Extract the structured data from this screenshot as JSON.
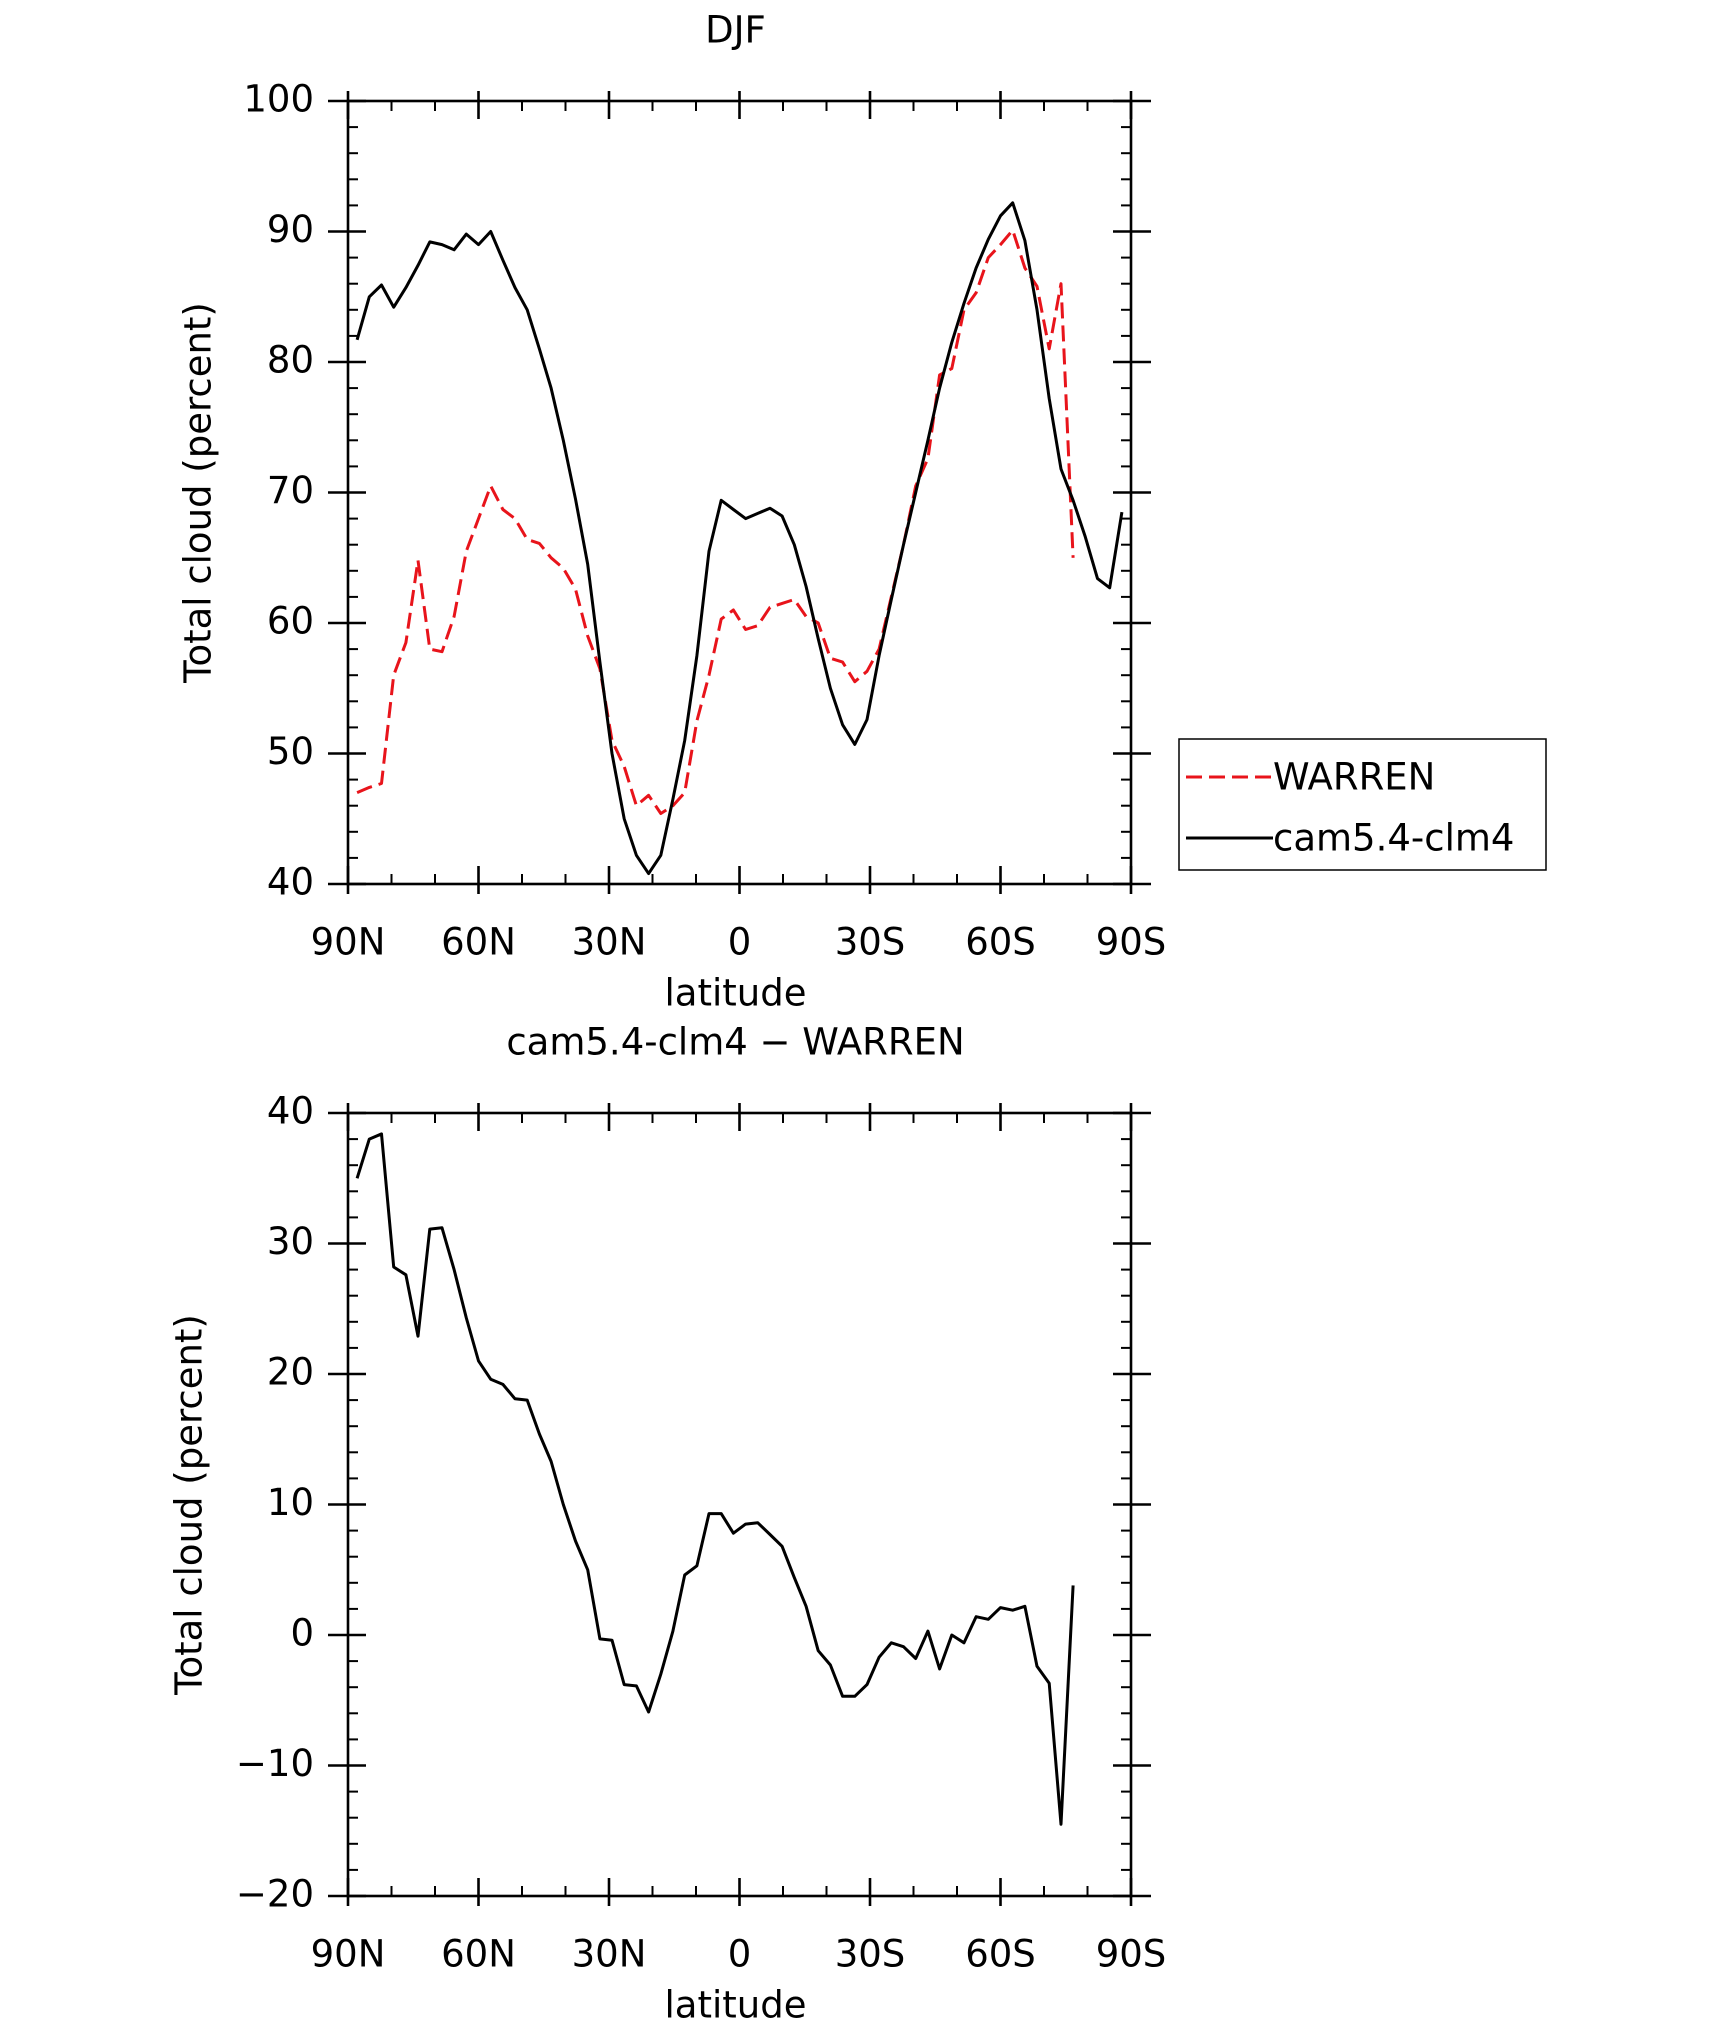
{
  "chart_data": [
    {
      "type": "line",
      "title": "DJF",
      "x_label": "latitude",
      "y_label": "Total cloud (percent)",
      "x": [
        87.9,
        85.1,
        82.3,
        79.5,
        76.7,
        73.9,
        71.2,
        68.4,
        65.6,
        62.8,
        60.0,
        57.2,
        54.4,
        51.6,
        48.8,
        46.0,
        43.3,
        40.5,
        37.7,
        34.9,
        32.1,
        29.3,
        26.5,
        23.7,
        20.9,
        18.1,
        15.3,
        12.6,
        9.8,
        7.0,
        4.2,
        1.4,
        -1.4,
        -4.2,
        -7.0,
        -9.8,
        -12.6,
        -15.3,
        -18.1,
        -20.9,
        -23.7,
        -26.5,
        -29.3,
        -32.1,
        -34.9,
        -37.7,
        -40.5,
        -43.3,
        -46.0,
        -48.8,
        -51.6,
        -54.4,
        -57.2,
        -60.0,
        -62.8,
        -65.6,
        -68.4,
        -71.2,
        -73.9,
        -76.7,
        -79.5,
        -82.3,
        -85.1,
        -87.9
      ],
      "xlim": [
        90,
        -90
      ],
      "xticks": [
        {
          "value": 90,
          "label": "90N"
        },
        {
          "value": 60,
          "label": "60N"
        },
        {
          "value": 30,
          "label": "30N"
        },
        0,
        {
          "value": -30,
          "label": "30S"
        },
        {
          "value": -60,
          "label": "60S"
        },
        {
          "value": -90,
          "label": "90S"
        }
      ],
      "ylim": [
        40,
        100
      ],
      "yticks": [
        40,
        50,
        60,
        70,
        80,
        90,
        100
      ],
      "legend": "right",
      "series": [
        {
          "name": "WARREN",
          "color": "#e8141b",
          "dashed": true,
          "values": [
            47,
            47.4,
            47.7,
            56,
            58.5,
            64.8,
            58,
            57.8,
            60.5,
            65.5,
            68,
            70.5,
            68.7,
            68,
            66.4,
            66.1,
            65,
            64.2,
            62.6,
            59,
            56.5,
            51,
            49,
            46,
            46.8,
            45.4,
            46,
            47,
            52.5,
            56,
            60.3,
            61,
            59.5,
            59.8,
            61.2,
            61.5,
            61.8,
            60.5,
            60,
            57.3,
            57,
            55.5,
            56.3,
            58,
            62,
            66,
            70.5,
            72.6,
            79,
            79.5,
            84,
            85.3,
            88,
            89,
            90.1,
            87.2,
            85.8,
            81,
            86,
            65,
            null,
            null,
            null,
            null
          ]
        },
        {
          "name": "cam5.4-clm4",
          "color": "#000000",
          "dashed": false,
          "values": [
            81.7,
            85,
            85.9,
            84.2,
            85.7,
            87.4,
            89.2,
            89,
            88.6,
            89.8,
            89,
            90,
            87.8,
            85.7,
            84,
            81,
            78,
            74,
            69.5,
            64.5,
            57,
            50,
            45,
            42.2,
            40.8,
            42.2,
            46.5,
            51,
            57.5,
            65.5,
            69.4,
            68.7,
            68,
            68.4,
            68.8,
            68.2,
            66,
            62.8,
            58.8,
            55,
            52.2,
            50.7,
            52.6,
            57.5,
            61.8,
            66,
            70,
            74,
            78,
            81.5,
            84.5,
            87.2,
            89.4,
            91.2,
            92.2,
            89.3,
            84,
            77.2,
            71.8,
            69.4,
            66.6,
            63.4,
            62.7,
            68.5
          ]
        }
      ]
    },
    {
      "type": "line",
      "title": "cam5.4-clm4 − WARREN",
      "x_label": "latitude",
      "y_label": "Total cloud (percent)",
      "x": [
        87.9,
        85.1,
        82.3,
        79.5,
        76.7,
        73.9,
        71.2,
        68.4,
        65.6,
        62.8,
        60.0,
        57.2,
        54.4,
        51.6,
        48.8,
        46.0,
        43.3,
        40.5,
        37.7,
        34.9,
        32.1,
        29.3,
        26.5,
        23.7,
        20.9,
        18.1,
        15.3,
        12.6,
        9.8,
        7.0,
        4.2,
        1.4,
        -1.4,
        -4.2,
        -7.0,
        -9.8,
        -12.6,
        -15.3,
        -18.1,
        -20.9,
        -23.7,
        -26.5,
        -29.3,
        -32.1,
        -34.9,
        -37.7,
        -40.5,
        -43.3,
        -46.0,
        -48.8,
        -51.6,
        -54.4,
        -57.2,
        -60.0,
        -62.8,
        -65.6,
        -68.4,
        -71.2,
        -73.9,
        -76.7,
        -79.5,
        -82.3,
        -85.1,
        -87.9
      ],
      "xlim": [
        90,
        -90
      ],
      "xticks": [
        {
          "value": 90,
          "label": "90N"
        },
        {
          "value": 60,
          "label": "60N"
        },
        {
          "value": 30,
          "label": "30N"
        },
        0,
        {
          "value": -30,
          "label": "30S"
        },
        {
          "value": -60,
          "label": "60S"
        },
        {
          "value": -90,
          "label": "90S"
        }
      ],
      "ylim": [
        -20,
        40
      ],
      "yticks": [
        {
          "value": -20,
          "label": "−20"
        },
        {
          "value": -10,
          "label": "−10"
        },
        0,
        10,
        20,
        30,
        40
      ],
      "series": [
        {
          "color": "#000000",
          "dashed": false,
          "values": [
            35,
            38,
            38.4,
            28.2,
            27.6,
            22.9,
            31.1,
            31.2,
            28,
            24.3,
            21,
            19.6,
            19.2,
            18.1,
            18,
            15.4,
            13.3,
            10,
            7.2,
            5,
            -0.3,
            -0.4,
            -3.8,
            -3.9,
            -5.9,
            -3,
            0.3,
            4.6,
            5.3,
            9.3,
            9.3,
            7.8,
            8.5,
            8.6,
            7.7,
            6.8,
            4.4,
            2.2,
            -1.2,
            -2.3,
            -4.7,
            -4.7,
            -3.8,
            -1.7,
            -0.6,
            -0.9,
            -1.8,
            0.3,
            -2.6,
            0,
            -0.6,
            1.4,
            1.2,
            2.1,
            1.9,
            2.2,
            -2.4,
            -3.7,
            -14.5,
            3.8,
            null,
            null,
            null,
            null
          ]
        }
      ]
    }
  ]
}
